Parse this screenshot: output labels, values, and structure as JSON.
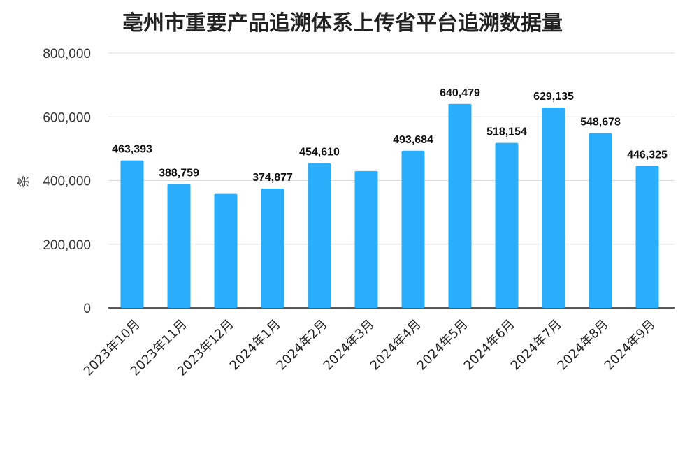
{
  "chart_data": {
    "type": "bar",
    "title": "亳州市重要产品追溯体系上传省平台追溯数据量",
    "ylabel": "条",
    "xlabel": "",
    "ylim": [
      0,
      800000
    ],
    "yticks": [
      0,
      200000,
      400000,
      600000,
      800000
    ],
    "ytick_labels": [
      "0",
      "200,000",
      "400,000",
      "600,000",
      "800,000"
    ],
    "grid": true,
    "bar_color": "#2aaefc",
    "categories": [
      "2023年10月",
      "2023年11月",
      "2023年12月",
      "2024年1月",
      "2024年2月",
      "2024年3月",
      "2024年4月",
      "2024年5月",
      "2024年6月",
      "2024年7月",
      "2024年8月",
      "2024年9月"
    ],
    "values": [
      463393,
      388759,
      358000,
      374877,
      454610,
      430000,
      493684,
      640479,
      518154,
      629135,
      548678,
      446325
    ],
    "data_labels": [
      "463,393",
      "388,759",
      "",
      "374,877",
      "454,610",
      "",
      "493,684",
      "640,479",
      "518,154",
      "629,135",
      "548,678",
      "446,325"
    ]
  }
}
